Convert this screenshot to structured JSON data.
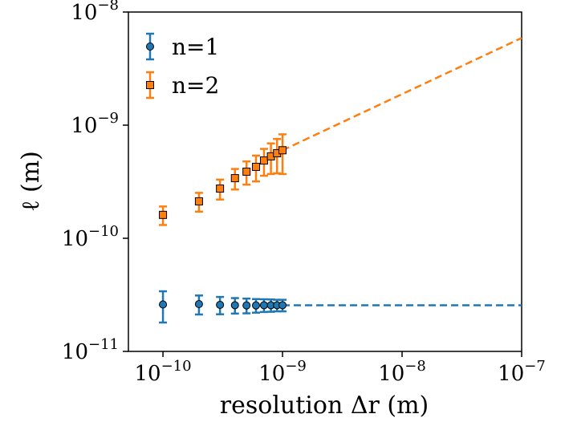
{
  "chart_data": {
    "type": "errorbar",
    "xlabel": "resolution Δr (m)",
    "ylabel": "ℓ (m)",
    "xscale": "log",
    "yscale": "log",
    "xlim": [
      5.14e-11,
      1e-07
    ],
    "ylim": [
      1e-11,
      1e-08
    ],
    "xticks": [
      {
        "value": 1e-10,
        "label": "10−10"
      },
      {
        "value": 1e-09,
        "label": "10−9"
      },
      {
        "value": 1e-08,
        "label": "10−8"
      },
      {
        "value": 1e-07,
        "label": "10−7"
      }
    ],
    "yticks": [
      {
        "value": 1e-11,
        "label": "10−11"
      },
      {
        "value": 1e-10,
        "label": "10−10"
      },
      {
        "value": 1e-09,
        "label": "10−9"
      },
      {
        "value": 1e-08,
        "label": "10−8"
      }
    ],
    "legend": "upper left",
    "series": [
      {
        "name": "n=1",
        "color": "#1f77b4",
        "marker": "circle",
        "x": [
          1e-10,
          2e-10,
          3e-10,
          4e-10,
          5e-10,
          6e-10,
          7e-10,
          8e-10,
          9e-10,
          1e-09
        ],
        "values": [
          2.6e-11,
          2.62e-11,
          2.58e-11,
          2.56e-11,
          2.55e-11,
          2.55e-11,
          2.56e-11,
          2.56e-11,
          2.56e-11,
          2.56e-11
        ],
        "yerr": [
          8e-12,
          5e-12,
          4.5e-12,
          4e-12,
          3.8e-12,
          3.5e-12,
          3.3e-12,
          3.2e-12,
          3e-12,
          3e-12
        ]
      },
      {
        "name": "n=2",
        "color": "#ff7f0e",
        "marker": "square",
        "x": [
          1e-10,
          2e-10,
          3e-10,
          4e-10,
          5e-10,
          6e-10,
          7e-10,
          8e-10,
          9e-10,
          1e-09
        ],
        "values": [
          1.61e-10,
          2.12e-10,
          2.75e-10,
          3.4e-10,
          3.88e-10,
          4.28e-10,
          4.87e-10,
          5.3e-10,
          5.65e-10,
          6e-10
        ],
        "yerr": [
          3e-11,
          4e-11,
          5.5e-11,
          7e-11,
          9e-11,
          1.1e-10,
          1.3e-10,
          1.6e-10,
          1.9e-10,
          2.3e-10
        ]
      }
    ],
    "fits": [
      {
        "color": "#1f77b4",
        "x": [
          1e-09,
          1e-07
        ],
        "values": [
          2.56e-11,
          2.56e-11
        ]
      },
      {
        "color": "#ff7f0e",
        "x": [
          1e-09,
          1e-07
        ],
        "values": [
          6e-10,
          5.9e-09
        ]
      }
    ]
  }
}
